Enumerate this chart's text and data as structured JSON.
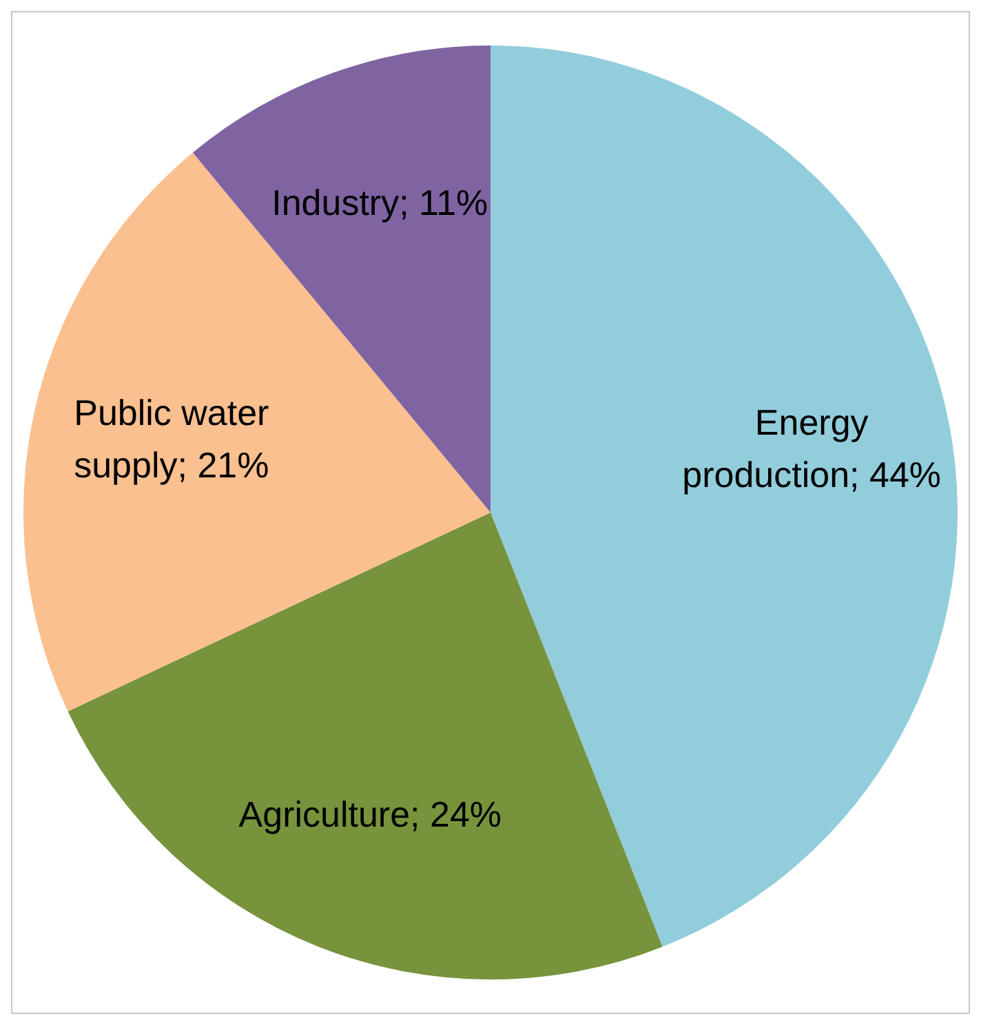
{
  "chart_data": {
    "type": "pie",
    "categories": [
      "Energy production",
      "Agriculture",
      "Public water supply",
      "Industry"
    ],
    "values": [
      44,
      24,
      21,
      11
    ],
    "value_labels": [
      "44%",
      "24%",
      "21%",
      "11%"
    ],
    "colors": [
      "#92cddc",
      "#77933c",
      "#fac090",
      "#8064a2"
    ],
    "legend": false
  }
}
